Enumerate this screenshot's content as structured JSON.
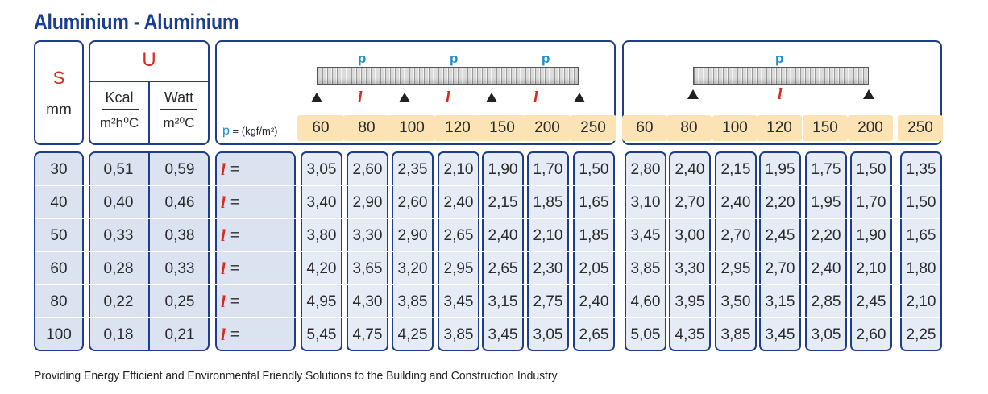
{
  "title": "Aluminium - Aluminium",
  "header": {
    "s_label": "S",
    "s_unit": "mm",
    "u_label": "U",
    "kcal_label": "Kcal",
    "kcal_unit": "m²h⁰C",
    "watt_label": "Watt",
    "watt_unit": "m²⁰C",
    "p_symbol": "p",
    "p_eq": "= (kgf/m²)",
    "l_symbol": "l",
    "l_eq": "=",
    "load_a": [
      "p",
      "p",
      "p"
    ],
    "span_a": [
      "l",
      "l",
      "l"
    ],
    "load_b": "p",
    "span_b": "l"
  },
  "loads_a": [
    "60",
    "80",
    "100",
    "120",
    "150",
    "200",
    "250"
  ],
  "loads_b": [
    "60",
    "80",
    "100",
    "120",
    "150",
    "200",
    "250"
  ],
  "rows": [
    {
      "s": "30",
      "kcal": "0,51",
      "watt": "0,59",
      "a": [
        "3,05",
        "2,60",
        "2,35",
        "2,10",
        "1,90",
        "1,70",
        "1,50"
      ],
      "b": [
        "2,80",
        "2,40",
        "2,15",
        "1,95",
        "1,75",
        "1,50",
        "1,35"
      ]
    },
    {
      "s": "40",
      "kcal": "0,40",
      "watt": "0,46",
      "a": [
        "3,40",
        "2,90",
        "2,60",
        "2,40",
        "2,15",
        "1,85",
        "1,65"
      ],
      "b": [
        "3,10",
        "2,70",
        "2,40",
        "2,20",
        "1,95",
        "1,70",
        "1,50"
      ]
    },
    {
      "s": "50",
      "kcal": "0,33",
      "watt": "0,38",
      "a": [
        "3,80",
        "3,30",
        "2,90",
        "2,65",
        "2,40",
        "2,10",
        "1,85"
      ],
      "b": [
        "3,45",
        "3,00",
        "2,70",
        "2,45",
        "2,20",
        "1,90",
        "1,65"
      ]
    },
    {
      "s": "60",
      "kcal": "0,28",
      "watt": "0,33",
      "a": [
        "4,20",
        "3,65",
        "3,20",
        "2,95",
        "2,65",
        "2,30",
        "2,05"
      ],
      "b": [
        "3,85",
        "3,30",
        "2,95",
        "2,70",
        "2,40",
        "2,10",
        "1,80"
      ]
    },
    {
      "s": "80",
      "kcal": "0,22",
      "watt": "0,25",
      "a": [
        "4,95",
        "4,30",
        "3,85",
        "3,45",
        "3,15",
        "2,75",
        "2,40"
      ],
      "b": [
        "4,60",
        "3,95",
        "3,50",
        "3,15",
        "2,85",
        "2,45",
        "2,10"
      ]
    },
    {
      "s": "100",
      "kcal": "0,18",
      "watt": "0,21",
      "a": [
        "5,45",
        "4,75",
        "4,25",
        "3,85",
        "3,45",
        "3,05",
        "2,65"
      ],
      "b": [
        "5,05",
        "4,35",
        "3,85",
        "3,45",
        "3,05",
        "2,60",
        "2,25"
      ]
    }
  ],
  "footer": "Providing Energy Efficient and Environmental Friendly Solutions to the Building and Construction Industry"
}
